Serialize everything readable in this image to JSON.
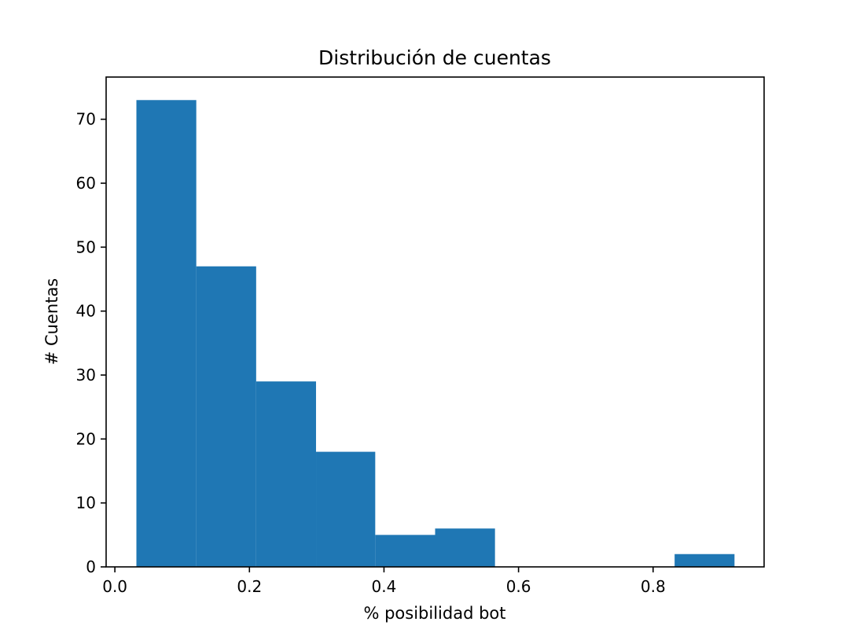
{
  "chart_data": {
    "type": "bar",
    "subtype": "histogram",
    "title": "Distribución de cuentas",
    "xlabel": "% posibilidad bot",
    "ylabel": "# Cuentas",
    "bin_edges": [
      0.032,
      0.121,
      0.21,
      0.299,
      0.387,
      0.476,
      0.565,
      0.654,
      0.743,
      0.832,
      0.921
    ],
    "categories": [
      "0.032-0.121",
      "0.121-0.210",
      "0.210-0.299",
      "0.299-0.387",
      "0.387-0.476",
      "0.476-0.565",
      "0.565-0.654",
      "0.654-0.743",
      "0.743-0.832",
      "0.832-0.921"
    ],
    "values": [
      73,
      47,
      29,
      18,
      5,
      6,
      0,
      0,
      0,
      2
    ],
    "xlim": [
      -0.013,
      0.965
    ],
    "ylim": [
      0,
      76.6
    ],
    "xticks": [
      0.0,
      0.2,
      0.4,
      0.6,
      0.8
    ],
    "xtick_labels": [
      "0.0",
      "0.2",
      "0.4",
      "0.6",
      "0.8"
    ],
    "yticks": [
      0,
      10,
      20,
      30,
      40,
      50,
      60,
      70
    ],
    "ytick_labels": [
      "0",
      "10",
      "20",
      "30",
      "40",
      "50",
      "60",
      "70"
    ],
    "grid": false,
    "legend": null,
    "bar_color": "#1f77b4"
  }
}
